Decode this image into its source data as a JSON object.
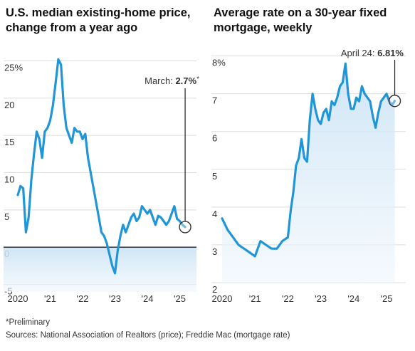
{
  "chart_data": [
    {
      "type": "line",
      "title": "U.S. median existing-home price, change from a year ago",
      "ylim": [
        -6,
        26
      ],
      "yticks": [
        25,
        20,
        15,
        10,
        5,
        0,
        -5
      ],
      "ytick_labels": [
        "25%",
        "20",
        "15",
        "10",
        "5",
        "0",
        "-5"
      ],
      "xticks": [
        "2020",
        "'21",
        "'22",
        "'23",
        "'24",
        "'25"
      ],
      "grid": true,
      "annotation": {
        "prefix": "March: ",
        "value": "2.7%",
        "suffix": "*"
      },
      "series": [
        {
          "x": [
            "2020-01",
            "2020-02",
            "2020-03",
            "2020-04",
            "2020-05",
            "2020-06",
            "2020-07",
            "2020-08",
            "2020-09",
            "2020-10",
            "2020-11",
            "2020-12",
            "2021-01",
            "2021-02",
            "2021-03",
            "2021-04",
            "2021-05",
            "2021-06",
            "2021-07",
            "2021-08",
            "2021-09",
            "2021-10",
            "2021-11",
            "2021-12",
            "2022-01",
            "2022-02",
            "2022-03",
            "2022-04",
            "2022-05",
            "2022-06",
            "2022-07",
            "2022-08",
            "2022-09",
            "2022-10",
            "2022-11",
            "2022-12",
            "2023-01",
            "2023-02",
            "2023-03",
            "2023-04",
            "2023-05",
            "2023-06",
            "2023-07",
            "2023-08",
            "2023-09",
            "2023-10",
            "2023-11",
            "2023-12",
            "2024-01",
            "2024-02",
            "2024-03",
            "2024-04",
            "2024-05",
            "2024-06",
            "2024-07",
            "2024-08",
            "2024-09",
            "2024-10",
            "2024-11",
            "2024-12",
            "2025-01",
            "2025-02",
            "2025-03"
          ],
          "values": [
            7.0,
            8.2,
            7.9,
            2.0,
            4.0,
            9.0,
            12.5,
            15.5,
            14.5,
            12.0,
            15.5,
            16.0,
            17.0,
            19.0,
            22.0,
            25.2,
            24.5,
            19.0,
            16.0,
            15.0,
            14.0,
            16.0,
            15.5,
            15.5,
            14.5,
            15.2,
            12.0,
            10.0,
            8.0,
            6.0,
            4.0,
            2.0,
            1.5,
            0.5,
            -1.0,
            -2.5,
            -3.5,
            -0.5,
            1.5,
            3.0,
            2.0,
            3.0,
            4.0,
            4.5,
            3.5,
            4.0,
            5.5,
            5.0,
            4.5,
            5.0,
            4.0,
            3.0,
            4.2,
            4.0,
            3.5,
            3.0,
            3.5,
            4.5,
            5.5,
            3.8,
            3.5,
            3.0,
            2.7
          ]
        }
      ]
    },
    {
      "type": "line",
      "title": "Average rate on a 30-year fixed mortgage, weekly",
      "ylim": [
        2,
        8.2
      ],
      "yticks": [
        8,
        7,
        6,
        5,
        4,
        3,
        2
      ],
      "ytick_labels": [
        "8%",
        "7",
        "6",
        "5",
        "4",
        "3",
        "2"
      ],
      "xticks": [
        "2020",
        "'21",
        "'22",
        "'23",
        "'24",
        "'25"
      ],
      "grid": true,
      "annotation": {
        "prefix": "April 24: ",
        "value": "6.81%",
        "suffix": ""
      },
      "series": [
        {
          "x": [
            "2020-01",
            "2020-03",
            "2020-05",
            "2020-07",
            "2020-09",
            "2020-11",
            "2021-01",
            "2021-03",
            "2021-05",
            "2021-07",
            "2021-09",
            "2021-11",
            "2022-01",
            "2022-02",
            "2022-03",
            "2022-04",
            "2022-05",
            "2022-06",
            "2022-07",
            "2022-08",
            "2022-09",
            "2022-10",
            "2022-11",
            "2022-12",
            "2023-01",
            "2023-02",
            "2023-03",
            "2023-04",
            "2023-05",
            "2023-06",
            "2023-07",
            "2023-08",
            "2023-09",
            "2023-10",
            "2023-11",
            "2023-12",
            "2024-01",
            "2024-02",
            "2024-03",
            "2024-04",
            "2024-05",
            "2024-06",
            "2024-07",
            "2024-08",
            "2024-09",
            "2024-10",
            "2024-11",
            "2024-12",
            "2025-01",
            "2025-02",
            "2025-03",
            "2025-04"
          ],
          "values": [
            3.7,
            3.4,
            3.2,
            3.0,
            2.9,
            2.8,
            2.7,
            3.1,
            3.0,
            2.9,
            2.9,
            3.1,
            3.2,
            3.9,
            4.4,
            5.1,
            5.3,
            5.8,
            5.3,
            5.2,
            6.3,
            7.0,
            6.6,
            6.3,
            6.2,
            6.5,
            6.6,
            6.3,
            6.8,
            6.7,
            6.9,
            7.2,
            7.3,
            7.8,
            7.0,
            6.6,
            6.6,
            6.9,
            6.8,
            7.2,
            7.0,
            6.9,
            6.8,
            6.4,
            6.1,
            6.5,
            6.8,
            6.9,
            7.0,
            6.8,
            6.7,
            6.81
          ]
        }
      ]
    }
  ],
  "footnote": "*Preliminary",
  "sources": "Sources: National Association of Realtors (price); Freddie Mac (mortgage rate)"
}
